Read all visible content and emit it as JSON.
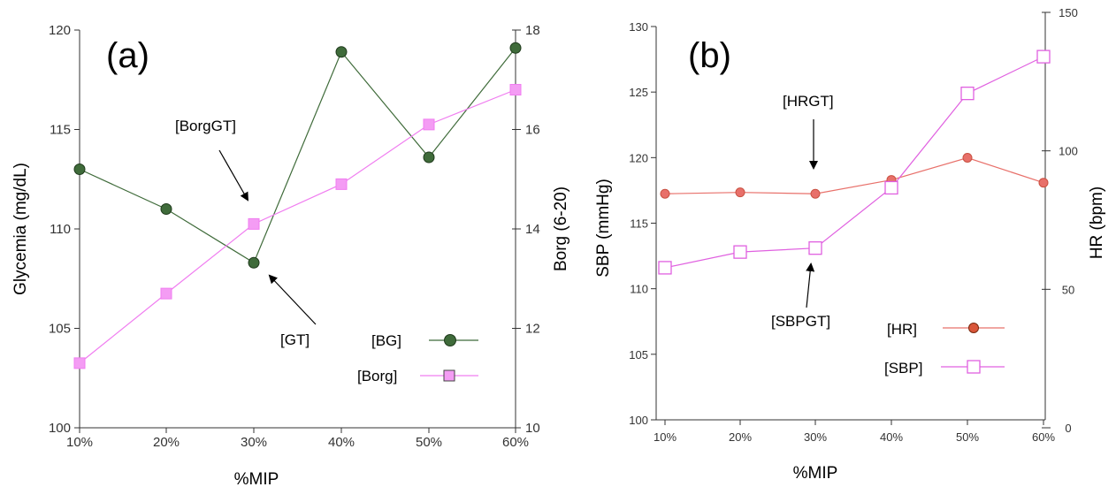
{
  "chart_data": [
    {
      "type": "line",
      "panel_label": "(a)",
      "xlabel": "%MIP",
      "categories": [
        "10%",
        "20%",
        "30%",
        "40%",
        "50%",
        "60%"
      ],
      "y_left": {
        "label": "Glycemia (mg/dL)",
        "lim": [
          100,
          120
        ],
        "ticks": [
          100,
          105,
          110,
          115,
          120
        ]
      },
      "y_right": {
        "label": "Borg (6-20)",
        "lim": [
          10,
          18
        ],
        "ticks": [
          10,
          12,
          14,
          16,
          18
        ]
      },
      "series": [
        {
          "name": "[BG]",
          "axis": "left",
          "color": "#3f6b3a",
          "marker": "circle-filled",
          "values": [
            113.0,
            111.0,
            108.3,
            118.9,
            113.6,
            119.1
          ]
        },
        {
          "name": "[Borg]",
          "axis": "right",
          "color": "#f07df0",
          "marker": "square-filled",
          "values": [
            11.3,
            12.7,
            14.1,
            14.9,
            16.1,
            16.8
          ]
        }
      ],
      "annotations": [
        {
          "text": "[BorgGT]"
        },
        {
          "text": "[GT]"
        }
      ],
      "legend": "bottom-right",
      "grid": false
    },
    {
      "type": "line",
      "panel_label": "(b)",
      "xlabel": "%MIP",
      "categories": [
        "10%",
        "20%",
        "30%",
        "40%",
        "50%",
        "60%"
      ],
      "y_left": {
        "label": "SBP (mmHg)",
        "lim": [
          100,
          130
        ],
        "ticks": [
          100,
          105,
          110,
          115,
          120,
          125,
          130
        ]
      },
      "y_right": {
        "label": "HR (bpm)",
        "lim": [
          0,
          150
        ],
        "ticks": [
          0,
          50,
          100,
          150
        ]
      },
      "series": [
        {
          "name": "[HR]",
          "axis": "right",
          "color": "#e8706a",
          "marker": "circle-filled",
          "values": [
            84.5,
            85.0,
            84.5,
            89.5,
            97.5,
            88.5
          ]
        },
        {
          "name": "[SBP]",
          "axis": "left",
          "color": "#e060e0",
          "marker": "square-open",
          "values": [
            111.6,
            112.8,
            113.1,
            117.7,
            124.9,
            127.7
          ]
        }
      ],
      "annotations": [
        {
          "text": "[HRGT]"
        },
        {
          "text": "[SBPGT]"
        }
      ],
      "legend": "bottom-right",
      "grid": false
    }
  ]
}
